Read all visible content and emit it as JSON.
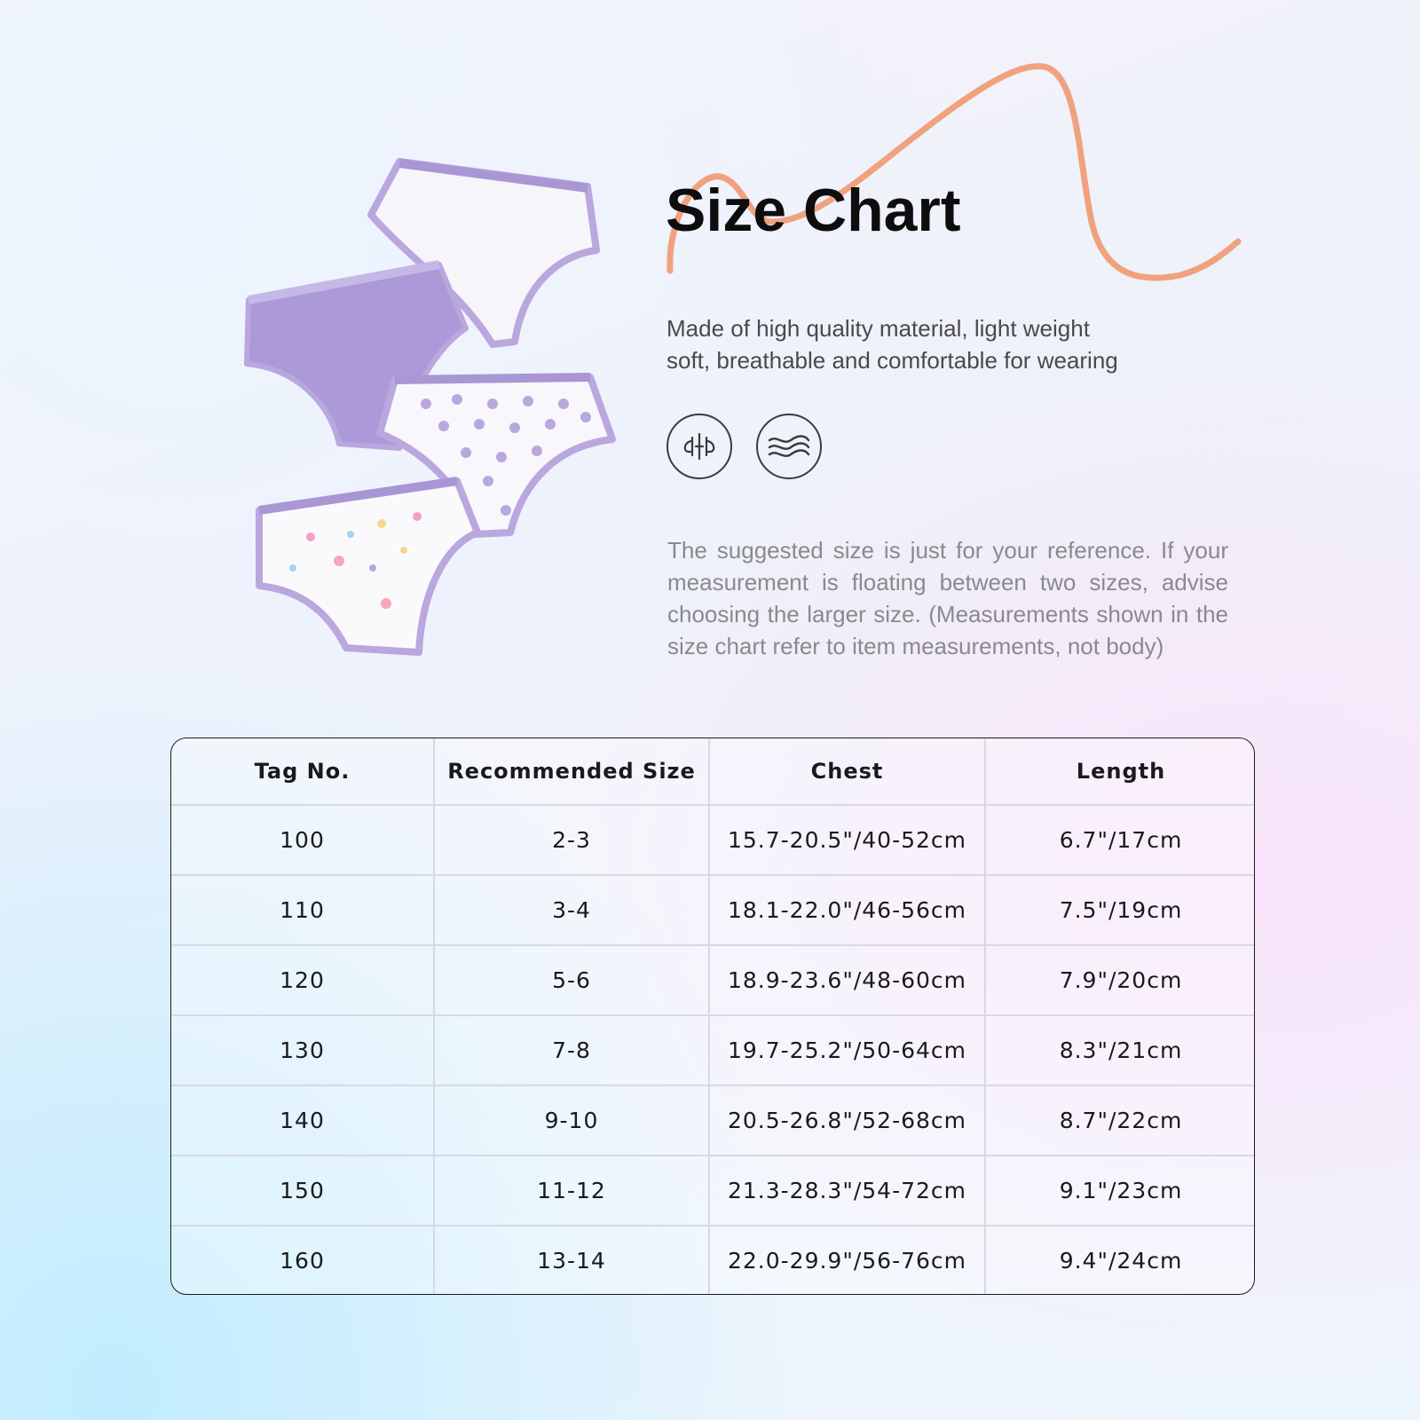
{
  "header": {
    "title": "Size Chart",
    "subtitle_line1": "Made of high quality material, light weight",
    "subtitle_line2": "soft, breathable and comfortable for wearing"
  },
  "feature_icons": [
    "breathable-fabric-icon",
    "soft-wave-icon"
  ],
  "note": "The suggested size is just for your reference. If your measurement is floating between two sizes, advise choosing the larger size. (Measurements shown in the size chart refer to item measurements, not body)",
  "colors": {
    "wave": "#f0a27e",
    "lavender": "#b9a7de",
    "lavender_dark": "#a996d4",
    "title": "#0d0d0d"
  },
  "size_table": {
    "headers": [
      "Tag No.",
      "Recommended Size",
      "Chest",
      "Length"
    ],
    "rows": [
      [
        "100",
        "2-3",
        "15.7-20.5\"/40-52cm",
        "6.7\"/17cm"
      ],
      [
        "110",
        "3-4",
        "18.1-22.0\"/46-56cm",
        "7.5\"/19cm"
      ],
      [
        "120",
        "5-6",
        "18.9-23.6\"/48-60cm",
        "7.9\"/20cm"
      ],
      [
        "130",
        "7-8",
        "19.7-25.2\"/50-64cm",
        "8.3\"/21cm"
      ],
      [
        "140",
        "9-10",
        "20.5-26.8\"/52-68cm",
        "8.7\"/22cm"
      ],
      [
        "150",
        "11-12",
        "21.3-28.3\"/54-72cm",
        "9.1\"/23cm"
      ],
      [
        "160",
        "13-14",
        "22.0-29.9\"/56-76cm",
        "9.4\"/24cm"
      ]
    ]
  }
}
